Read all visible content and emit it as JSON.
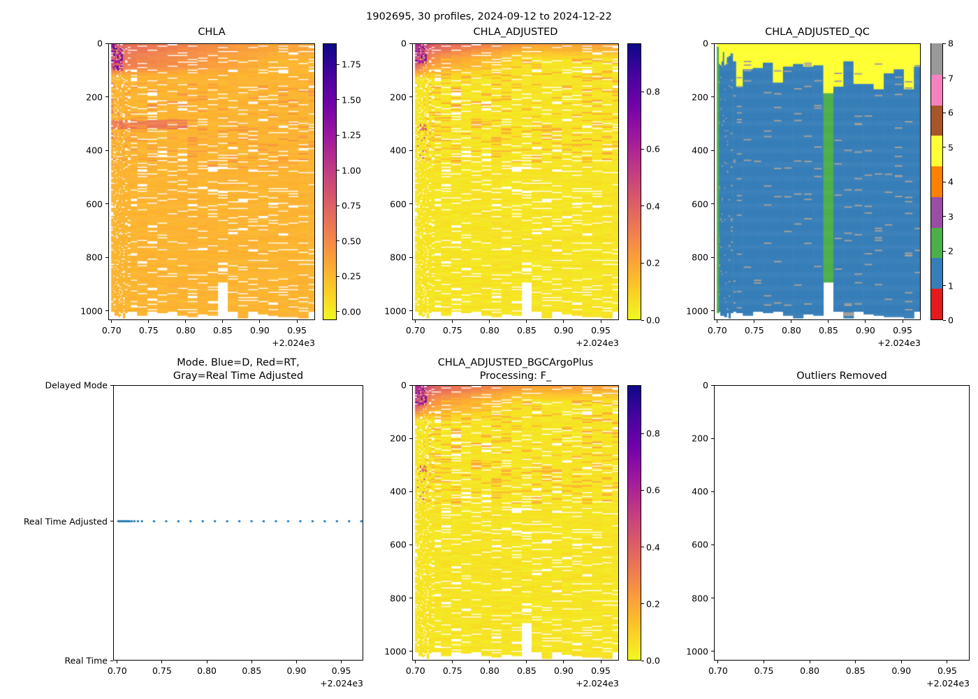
{
  "figure": {
    "title": "1902695, 30 profiles, 2024-09-12 to 2024-12-22",
    "background_color": "#ffffff",
    "platform_id": "1902695",
    "n_profiles": 30,
    "date_start": "2024-09-12",
    "date_end": "2024-12-22"
  },
  "axis_shared": {
    "x_tick_labels": [
      "0.70",
      "0.75",
      "0.80",
      "0.85",
      "0.90",
      "0.95"
    ],
    "x_tick_values": [
      0.7,
      0.75,
      0.8,
      0.85,
      0.9,
      0.95
    ],
    "x_offset_label": "+2.024e3",
    "x_range": [
      0.6955,
      0.9745
    ],
    "depth_tick_labels": [
      "0",
      "200",
      "400",
      "600",
      "800",
      "1000"
    ],
    "depth_tick_values": [
      0,
      200,
      400,
      600,
      800,
      1000
    ],
    "depth_range": [
      0,
      1035
    ],
    "y_axis_inverted": true
  },
  "profile_times_x": [
    0.7005,
    0.7022,
    0.704,
    0.7058,
    0.7076,
    0.7094,
    0.7112,
    0.713,
    0.7155,
    0.7185,
    0.7225,
    0.727,
    0.7405,
    0.7542,
    0.7679,
    0.7815,
    0.7952,
    0.8089,
    0.8226,
    0.8363,
    0.85,
    0.8636,
    0.8773,
    0.891,
    0.9047,
    0.9184,
    0.9321,
    0.9457,
    0.9594,
    0.9731
  ],
  "colormaps": {
    "plasma_reversed_stops": [
      "#0d0887",
      "#46039f",
      "#7201a8",
      "#9c179e",
      "#bd3786",
      "#d8576b",
      "#ed7953",
      "#fb9f3a",
      "#fdca26",
      "#f0f921"
    ],
    "qc_set1_colors_0_to_8": [
      "#e41a1c",
      "#377eb8",
      "#4daf4a",
      "#984ea3",
      "#ff7f00",
      "#ffff33",
      "#a65628",
      "#f781bf",
      "#999999"
    ]
  },
  "chart_data": [
    {
      "id": "chla",
      "type": "heatmap",
      "title": "CHLA",
      "colorbar": {
        "tick_labels": [
          "1.75",
          "1.50",
          "1.25",
          "1.00",
          "0.75",
          "0.50",
          "0.25",
          "0.00"
        ],
        "tick_values": [
          1.75,
          1.5,
          1.25,
          1.0,
          0.75,
          0.5,
          0.25,
          0.0
        ],
        "vmin": -0.06,
        "vmax": 1.9,
        "colormap": "plasma (yellow=low, dark blue=high)"
      },
      "body_value": 0.27,
      "features": "Mostly uniform ~0.27 (golden orange); surface layer (0-120 dbar) elevated 0.5-0.9 strongest in Sep profiles; purple/navy patches 1.0-1.8 in first 8 profiles above 100 dbar; elevated band ~0.55 near 290-315 dbar for profiles before mid-Oct; many thin white missing-data streaks; data ends ragged ~1000-1030 dbar; profile near x=0.85 missing below ~890 dbar"
    },
    {
      "id": "adjusted",
      "type": "heatmap",
      "title": "CHLA_ADJUSTED",
      "colorbar": {
        "tick_labels": [
          "0.8",
          "0.6",
          "0.4",
          "0.2",
          "0.0"
        ],
        "tick_values": [
          0.8,
          0.6,
          0.4,
          0.2,
          0.0
        ],
        "vmin": 0.0,
        "vmax": 0.97,
        "colormap": "plasma (yellow=low, dark blue=high)"
      },
      "body_value": 0.05,
      "features": "Mostly ~0.05 (yellow); orange surface band 0.15-0.4 above ~120 dbar; purple patches 0.45-0.9 top-left (first profiles, <75 dbar); scattered orange cells 60-440 dbar; small pink spots 300-440 dbar in early profiles; same missing-data streaks and ragged ~1000-1030 dbar bottom as CHLA"
    },
    {
      "id": "qc",
      "type": "heatmap_categorical",
      "title": "CHLA_ADJUSTED_QC",
      "colorbar": {
        "tick_labels": [
          "8",
          "7",
          "6",
          "5",
          "4",
          "3",
          "2",
          "1",
          "0"
        ],
        "tick_values": [
          8,
          7,
          6,
          5,
          4,
          3,
          2,
          1,
          0
        ],
        "vmin": 0,
        "vmax": 8,
        "colormap": "Set1 discrete, 9 flags"
      },
      "dominant_flag": 1,
      "features": "Flag 1 (blue) dominates; flag 5 (yellow) band at surface with ragged depth 25-190 dbar; flag 2 (green) full-depth column for first profile and for profile near x=0.85 (185-890 dbar); scattered short gray dashes; small gray flag-8 patch near 1015 dbar around x=0.90; white (no data) below ~1000-1030 dbar"
    },
    {
      "id": "mode",
      "type": "scatter",
      "title_line1": "Mode. Blue=D, Red=RT,",
      "title_line2": "Gray=Real Time Adjusted",
      "y_categories": [
        "Delayed Mode",
        "Real Time Adjusted",
        "Real Time"
      ],
      "marker_color": "#1f77b4",
      "marker_size_px": 3,
      "points_y_category": "Real Time Adjusted",
      "points_x": [
        0.7005,
        0.7022,
        0.704,
        0.7058,
        0.7076,
        0.7094,
        0.7112,
        0.713,
        0.7155,
        0.7185,
        0.7225,
        0.727,
        0.7405,
        0.7542,
        0.7679,
        0.7815,
        0.7952,
        0.8089,
        0.8226,
        0.8363,
        0.85,
        0.8636,
        0.8773,
        0.891,
        0.9047,
        0.9184,
        0.9321,
        0.9457,
        0.9594,
        0.9731
      ]
    },
    {
      "id": "bgc",
      "type": "heatmap",
      "title_line1": "CHLA_ADJUSTED_BGCArgoPlus",
      "title_line2": "Processing: F_",
      "colorbar": {
        "tick_labels": [
          "0.8",
          "0.6",
          "0.4",
          "0.2",
          "0.0"
        ],
        "tick_values": [
          0.8,
          0.6,
          0.4,
          0.2,
          0.0
        ],
        "vmin": 0.0,
        "vmax": 0.97,
        "colormap": "plasma (yellow=low, dark blue=high)"
      },
      "body_value": 0.05,
      "features": "Visually identical to CHLA_ADJUSTED panel"
    },
    {
      "id": "outliers",
      "type": "empty",
      "title": "Outliers Removed",
      "features": "Empty axes, no data plotted"
    }
  ]
}
